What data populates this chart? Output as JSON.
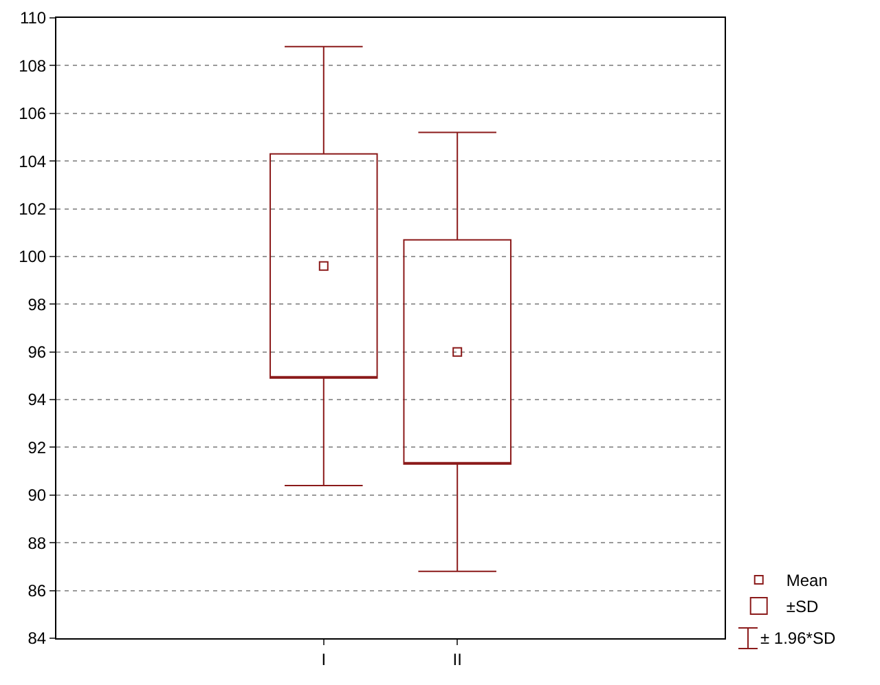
{
  "chart_data": {
    "type": "box",
    "categories": [
      "I",
      "II"
    ],
    "series": [
      {
        "name": "±SD",
        "color": "#8b1a1a",
        "boxes": [
          {
            "low": 90.4,
            "q1": 94.9,
            "q3": 104.3,
            "high": 108.8
          },
          {
            "low": 86.8,
            "q1": 91.3,
            "q3": 100.7,
            "high": 105.2
          }
        ]
      },
      {
        "name": "Mean",
        "type": "scatter",
        "color": "#8b1a1a",
        "x": [
          "I",
          "II"
        ],
        "values": [
          99.6,
          96.0
        ],
        "marker": "square"
      }
    ],
    "annotations": [
      "± 1.96*SD"
    ],
    "ylim": [
      84,
      110
    ],
    "yticks": [
      84,
      86,
      88,
      90,
      92,
      94,
      96,
      98,
      100,
      102,
      104,
      106,
      108,
      110
    ],
    "grid": "y",
    "legend": "bottom right"
  }
}
